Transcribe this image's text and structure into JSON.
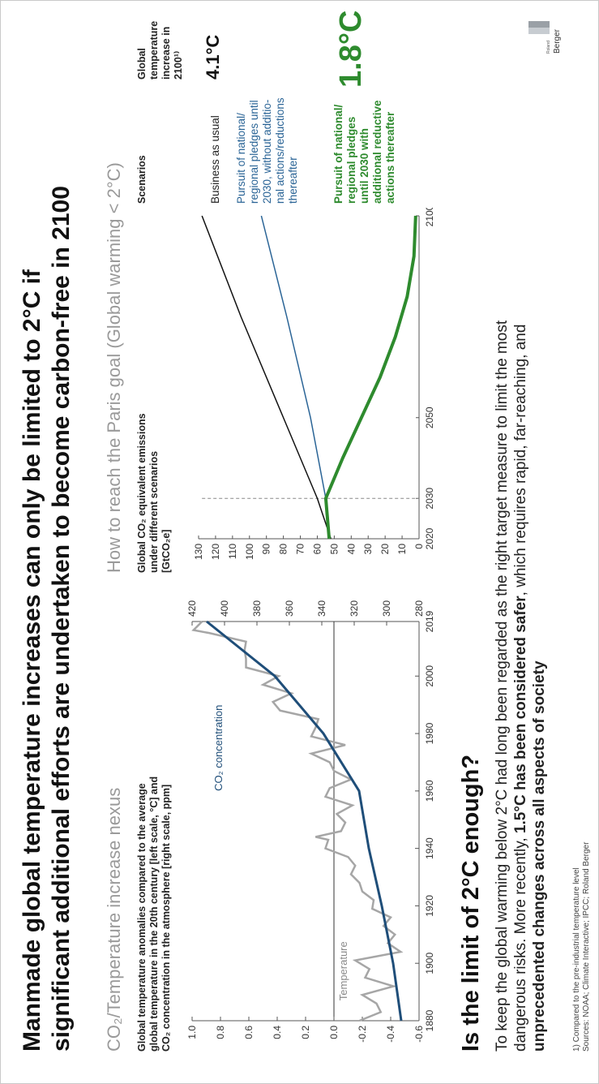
{
  "title": {
    "line1": "Manmade global temperature increases can only be limited to 2°C if",
    "line2": "significant additional efforts are undertaken to become carbon-free in 2100"
  },
  "left_panel": {
    "subtitle": "CO₂/Temperature increase nexus",
    "label_line1": "Global temperature anomalies compared to the average",
    "label_line2": "global temperature in the 20th century [left scale, °C] and",
    "label_line3": "CO₂ concentration in the atmosphere [right scale, ppm]",
    "co2_label": "CO₂ concentration",
    "temp_label": "Temperature"
  },
  "right_panel": {
    "subtitle": "How to reach the Paris goal (Global warming < 2°C)",
    "label_line1": "Global CO₂ equivalent emissions",
    "label_line2": "under different scenarios",
    "label_line3": "[GtCO₂e]",
    "scenarios_header": "Scenarios",
    "temp_header_line1": "Global",
    "temp_header_line2": "temperature",
    "temp_header_line3": "increase in",
    "temp_header_line4": "2100¹⁾",
    "scenario_bau": "Business as usual",
    "scenario_pledges_l1": "Pursuit of national/",
    "scenario_pledges_l2": "regional pledges until",
    "scenario_pledges_l3": "2030, without additio-",
    "scenario_pledges_l4": "nal actions/reductions",
    "scenario_pledges_l5": "thereafter",
    "scenario_green_l1": "Pursuit of national/",
    "scenario_green_l2": "regional pledges",
    "scenario_green_l3": "until 2030 with",
    "scenario_green_l4": "additional reductive",
    "scenario_green_l5": "actions thereafter",
    "value_bau": "4.1°C",
    "value_green": "1.8°C"
  },
  "bottom": {
    "heading": "Is the limit of 2°C enough?",
    "text_line1": "To keep the global warming below 2°C had long been regarded as the right target measure to limit the most",
    "text_line2_a": "dangerous risks. More recently, ",
    "text_line2_b": "1.5°C has been considered safer",
    "text_line2_c": ", which requires rapid, far-reaching, and",
    "text_line3": "unprecedented changes across all aspects of society"
  },
  "footnote": {
    "line1": "1) Compared to the pre-industrial temperature level",
    "line2": "Sources: NOAA; Climate Interactive; IPCC; Roland Berger"
  },
  "logo": {
    "small": "Roland",
    "big": "Berger"
  },
  "colors": {
    "co2": "#1f4e79",
    "temperature": "#a6a6a6",
    "green": "#2e8b2e",
    "bau": "#111111",
    "pledges": "#2a6496"
  },
  "chart_data": [
    {
      "type": "line",
      "x_ticks": [
        1880,
        1900,
        1920,
        1940,
        1960,
        1980,
        2000,
        2019
      ],
      "xlim": [
        1880,
        2019
      ],
      "ylim_left": [
        -0.6,
        1.0
      ],
      "yticks_left": [
        "1.0",
        "0.8",
        "0.6",
        "0.4",
        "0.2",
        "0.0",
        "-0.2",
        "-0.4",
        "-0.6"
      ],
      "ylim_right": [
        280,
        420
      ],
      "yticks_right": [
        "420",
        "400",
        "380",
        "360",
        "340",
        "320",
        "300",
        "280"
      ],
      "co2": {
        "x": [
          1880,
          1900,
          1920,
          1940,
          1960,
          1980,
          2000,
          2019
        ],
        "values": [
          291,
          296,
          303,
          311,
          317,
          339,
          369,
          411
        ]
      },
      "temperature": {
        "x": [
          1880,
          1883,
          1886,
          1889,
          1892,
          1895,
          1898,
          1901,
          1904,
          1907,
          1910,
          1913,
          1916,
          1919,
          1922,
          1925,
          1928,
          1931,
          1934,
          1937,
          1940,
          1943,
          1944,
          1946,
          1949,
          1952,
          1955,
          1958,
          1961,
          1964,
          1967,
          1970,
          1973,
          1976,
          1979,
          1982,
          1985,
          1988,
          1991,
          1994,
          1997,
          2000,
          2003,
          2006,
          2009,
          2012,
          2015,
          2016,
          2019
        ],
        "values": [
          -0.18,
          -0.33,
          -0.3,
          -0.2,
          -0.42,
          -0.22,
          -0.25,
          -0.15,
          -0.47,
          -0.38,
          -0.43,
          -0.35,
          -0.4,
          -0.27,
          -0.28,
          -0.2,
          -0.18,
          -0.12,
          -0.15,
          -0.1,
          0.06,
          0.04,
          0.13,
          -0.05,
          -0.08,
          -0.02,
          -0.13,
          0.06,
          0.03,
          -0.12,
          0.0,
          0.03,
          0.16,
          -0.08,
          0.16,
          0.13,
          0.11,
          0.38,
          0.43,
          0.3,
          0.5,
          0.39,
          0.62,
          0.62,
          0.63,
          0.62,
          0.88,
          0.99,
          0.93
        ]
      }
    },
    {
      "type": "line",
      "x_ticks": [
        "2020",
        "2030",
        "2050",
        "2100"
      ],
      "xlim": [
        2020,
        2100
      ],
      "ylim": [
        0,
        130
      ],
      "yticks": [
        "130",
        "120",
        "110",
        "100",
        "90",
        "80",
        "70",
        "60",
        "50",
        "40",
        "30",
        "20",
        "10",
        "0"
      ],
      "series": [
        {
          "name": "Business as usual",
          "x": [
            2020,
            2030,
            2050,
            2075,
            2100
          ],
          "values": [
            52,
            60,
            80,
            105,
            128
          ]
        },
        {
          "name": "Pursuit of national/regional pledges until 2030, without additional actions/reductions thereafter",
          "x": [
            2020,
            2030,
            2050,
            2075,
            2100
          ],
          "values": [
            53,
            55,
            64,
            78,
            93
          ]
        },
        {
          "name": "Pursuit of national/regional pledges until 2030 with additional reductive actions thereafter",
          "x": [
            2020,
            2030,
            2040,
            2050,
            2060,
            2070,
            2080,
            2090,
            2100
          ],
          "values": [
            53,
            55,
            45,
            34,
            23,
            14,
            7,
            3,
            2
          ]
        }
      ],
      "reference_x": 2030
    }
  ]
}
